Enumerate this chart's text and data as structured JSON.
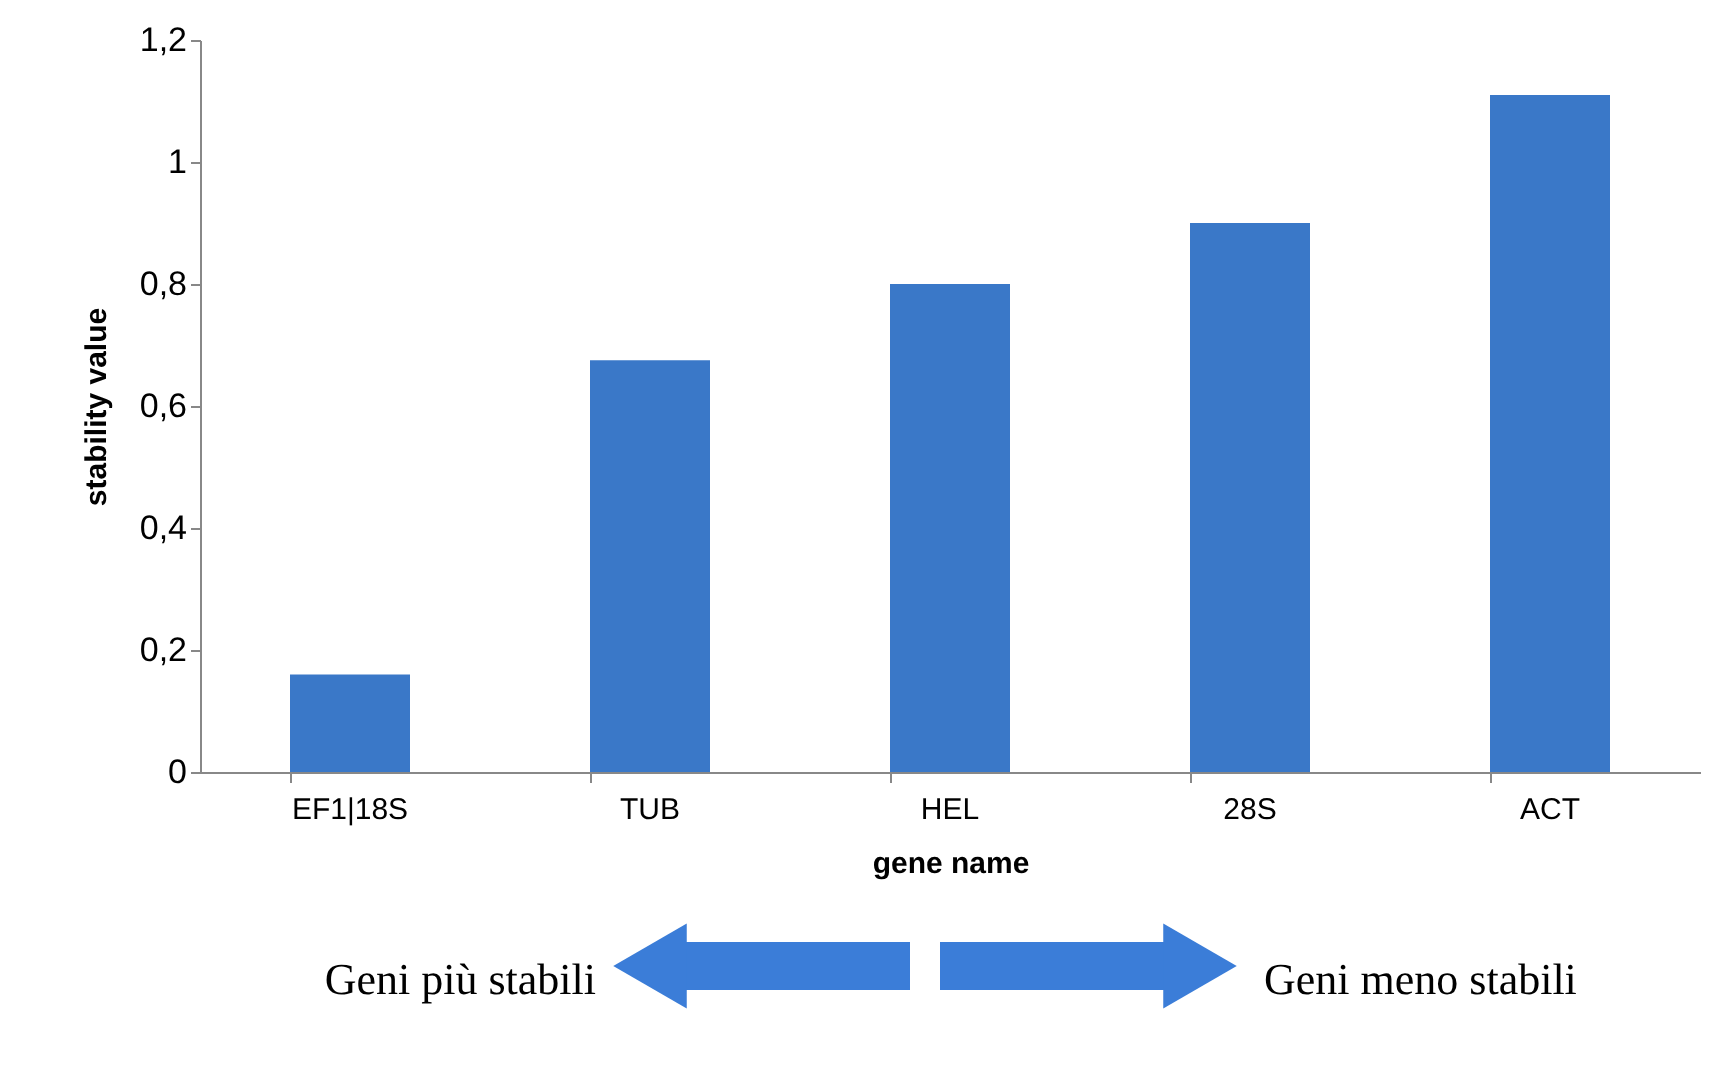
{
  "chart_data": {
    "type": "bar",
    "categories": [
      "EF1|18S",
      "TUB",
      "HEL",
      "28S",
      "ACT"
    ],
    "values": [
      0.16,
      0.675,
      0.8,
      0.9,
      1.11
    ],
    "color": "#3a78c8",
    "xlabel": "gene name",
    "ylabel": "stability value",
    "ylim": [
      0,
      1.2
    ],
    "yticks": [
      0,
      {
        "value": 0.2,
        "label": "0,2"
      },
      {
        "value": 0.4,
        "label": "0,4"
      },
      {
        "value": 0.6,
        "label": "0,6"
      },
      {
        "value": 0.8,
        "label": "0,8"
      },
      1,
      {
        "value": 1.2,
        "label": "1,2"
      }
    ],
    "grid": false,
    "annotations": [
      "Geni più stabili",
      "Geni  meno stabili"
    ]
  }
}
